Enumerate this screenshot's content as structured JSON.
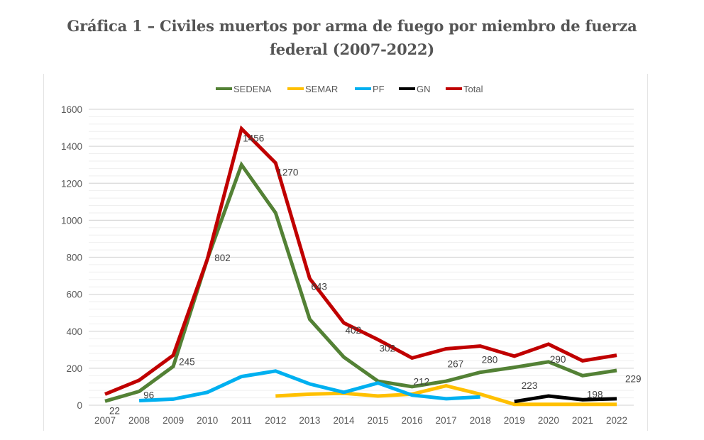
{
  "title_line1": "Gráfica 1 – Civiles muertos por arma de fuego por miembro de fuerza",
  "title_line2": "federal (2007-2022)",
  "chart_data": {
    "type": "line",
    "title": "Gráfica 1 – Civiles muertos por arma de fuego por miembro de fuerza federal (2007-2022)",
    "xlabel": "",
    "ylabel": "",
    "x": [
      "2007",
      "2008",
      "2009",
      "2010",
      "2011",
      "2012",
      "2013",
      "2014",
      "2015",
      "2016",
      "2017",
      "2018",
      "2019",
      "2020",
      "2021",
      "2022"
    ],
    "ylim": [
      0,
      1600
    ],
    "yticks": [
      0,
      200,
      400,
      600,
      800,
      1000,
      1200,
      1400,
      1600
    ],
    "grid": true,
    "legend_position": "top",
    "series": [
      {
        "name": "SEDENA",
        "color": "#538135",
        "values": [
          22,
          75,
          210,
          790,
          1300,
          1040,
          465,
          260,
          130,
          100,
          130,
          178,
          205,
          235,
          160,
          188
        ]
      },
      {
        "name": "SEMAR",
        "color": "#FFC000",
        "values": [
          null,
          null,
          null,
          null,
          null,
          50,
          60,
          65,
          50,
          60,
          105,
          60,
          5,
          5,
          5,
          5
        ]
      },
      {
        "name": "PF",
        "color": "#00B0F0",
        "values": [
          null,
          25,
          33,
          70,
          155,
          185,
          115,
          70,
          120,
          55,
          35,
          45,
          null,
          null,
          null,
          null
        ]
      },
      {
        "name": "GN",
        "color": "#000000",
        "values": [
          null,
          null,
          null,
          null,
          null,
          null,
          null,
          null,
          null,
          null,
          null,
          null,
          20,
          50,
          30,
          35
        ]
      },
      {
        "name": "Total",
        "color": "#C00000",
        "values": [
          60,
          135,
          270,
          790,
          1495,
          1310,
          685,
          445,
          355,
          255,
          305,
          320,
          265,
          330,
          240,
          270
        ]
      }
    ],
    "data_labels": [
      "22",
      "96",
      "245",
      "802",
      "1456",
      "1270",
      "643",
      "402",
      "302",
      "212",
      "267",
      "280",
      "223",
      "290",
      "198",
      "229"
    ]
  }
}
